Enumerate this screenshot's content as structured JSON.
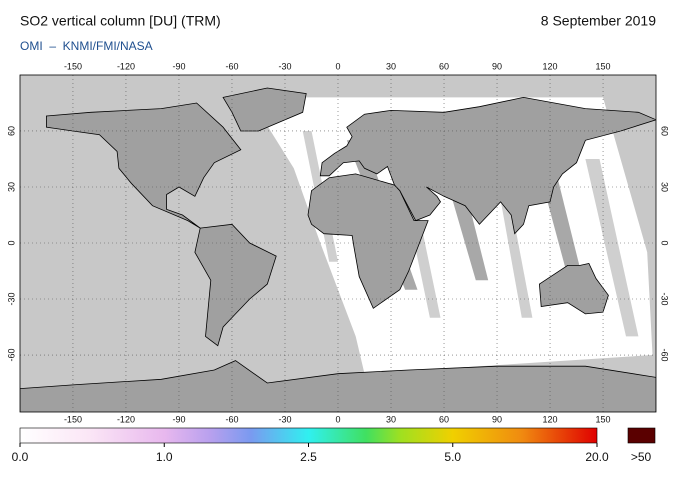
{
  "header": {
    "title": "SO2 vertical column [DU] (TRM)",
    "date": "8 September 2019",
    "source": "OMI  –  KNMI/FMI/NASA"
  },
  "map": {
    "lon_ticks": [
      -150,
      -120,
      -90,
      -60,
      -30,
      0,
      30,
      60,
      90,
      120,
      150
    ],
    "lat_ticks": [
      -60,
      -30,
      0,
      30,
      60
    ]
  },
  "colorbar": {
    "labels": [
      {
        "value": 0,
        "label": "0.0"
      },
      {
        "value": 1,
        "label": "1.0"
      },
      {
        "value": 2.5,
        "label": "2.5"
      },
      {
        "value": 5,
        "label": "5.0"
      },
      {
        "value": 20,
        "label": "20.0"
      }
    ],
    "overflow_label": ">50"
  }
}
